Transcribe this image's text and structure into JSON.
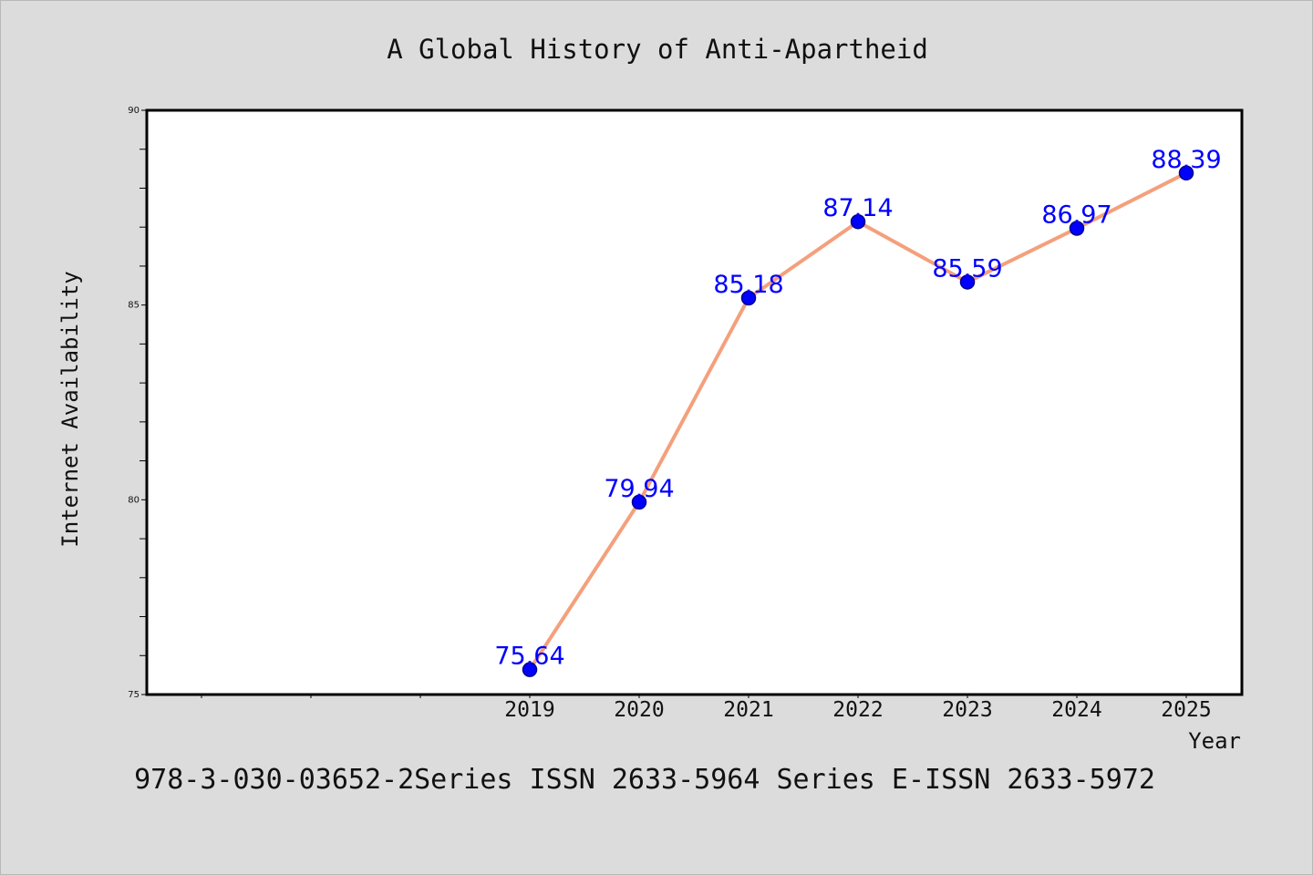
{
  "chart_data": {
    "type": "line",
    "title": "A Global History of Anti-Apartheid",
    "xlabel": "Year",
    "ylabel": "Internet Availability",
    "x": [
      "2019",
      "2020",
      "2021",
      "2022",
      "2023",
      "2024",
      "2025"
    ],
    "series": [
      {
        "values": [
          75.64,
          79.94,
          85.18,
          87.14,
          85.59,
          86.97,
          88.39
        ],
        "data_labels": [
          "75.64",
          "79.94",
          "85.18",
          "87.14",
          "85.59",
          "86.97",
          "88.39"
        ]
      }
    ],
    "ylim": [
      75,
      90
    ],
    "y_ticks": [
      "75",
      "80",
      "85",
      "90"
    ],
    "x_ticks": [
      "2019",
      "2020",
      "2021",
      "2022",
      "2023",
      "2024",
      "2025"
    ],
    "grid": false,
    "footer": "978-3-030-03652-2Series ISSN 2633-5964 Series E-ISSN 2633-5972",
    "colors": {
      "line": "#f4a07c",
      "marker": "#0000ff",
      "marker_edge": "#00008b",
      "data_label": "#0000ff",
      "background": "#dcdcdc",
      "plot_background": "#ffffff"
    }
  }
}
